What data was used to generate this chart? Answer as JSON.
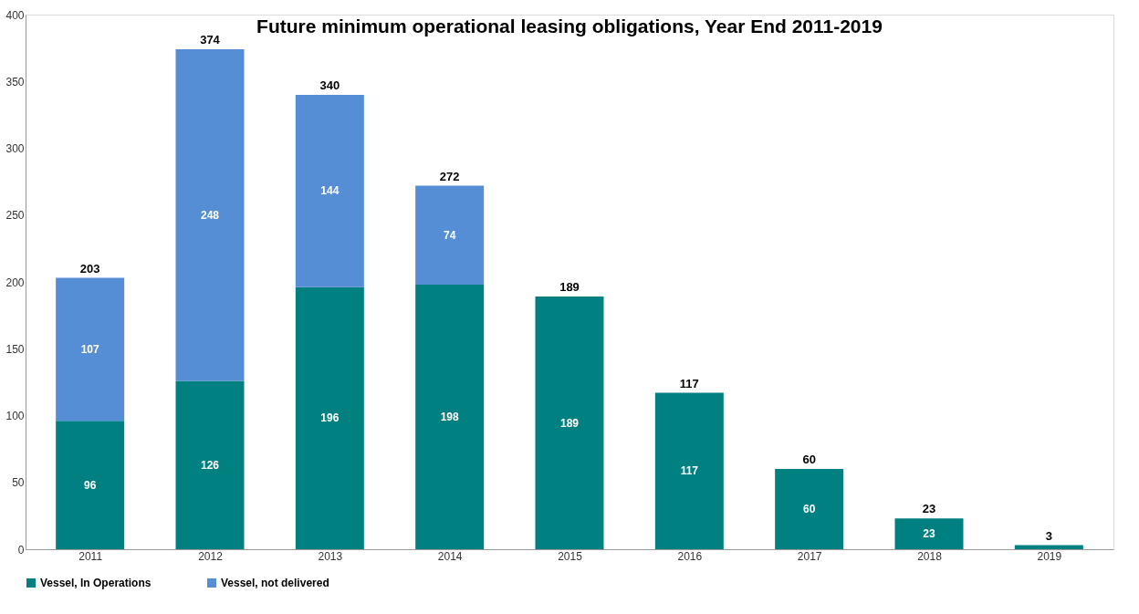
{
  "chart_data": {
    "type": "bar",
    "title": "Future minimum operational leasing obligations, Year End 2011-2019",
    "categories": [
      "2011",
      "2012",
      "2013",
      "2014",
      "2015",
      "2016",
      "2017",
      "2018",
      "2019"
    ],
    "series": [
      {
        "name": "Vessel, In Operations",
        "color": "#008080",
        "values": [
          96,
          126,
          196,
          198,
          189,
          117,
          60,
          23,
          3
        ],
        "value_labels": [
          "96",
          "126",
          "196",
          "198",
          "189",
          "117",
          "60",
          "23",
          null
        ]
      },
      {
        "name": "Vessel, not delivered",
        "color": "#558ed5",
        "values": [
          107,
          248,
          144,
          74,
          null,
          null,
          null,
          null,
          null
        ],
        "value_labels": [
          "107",
          "248",
          "144",
          "74",
          null,
          null,
          null,
          null,
          null
        ]
      }
    ],
    "stacked": true,
    "totals": [
      "203",
      "374",
      "340",
      "272",
      "189",
      "117",
      "60",
      "23",
      "3"
    ],
    "ylim": [
      0,
      400
    ],
    "yticks": [
      0,
      50,
      100,
      150,
      200,
      250,
      300,
      350,
      400
    ],
    "grid": false,
    "legend": "bottom"
  }
}
